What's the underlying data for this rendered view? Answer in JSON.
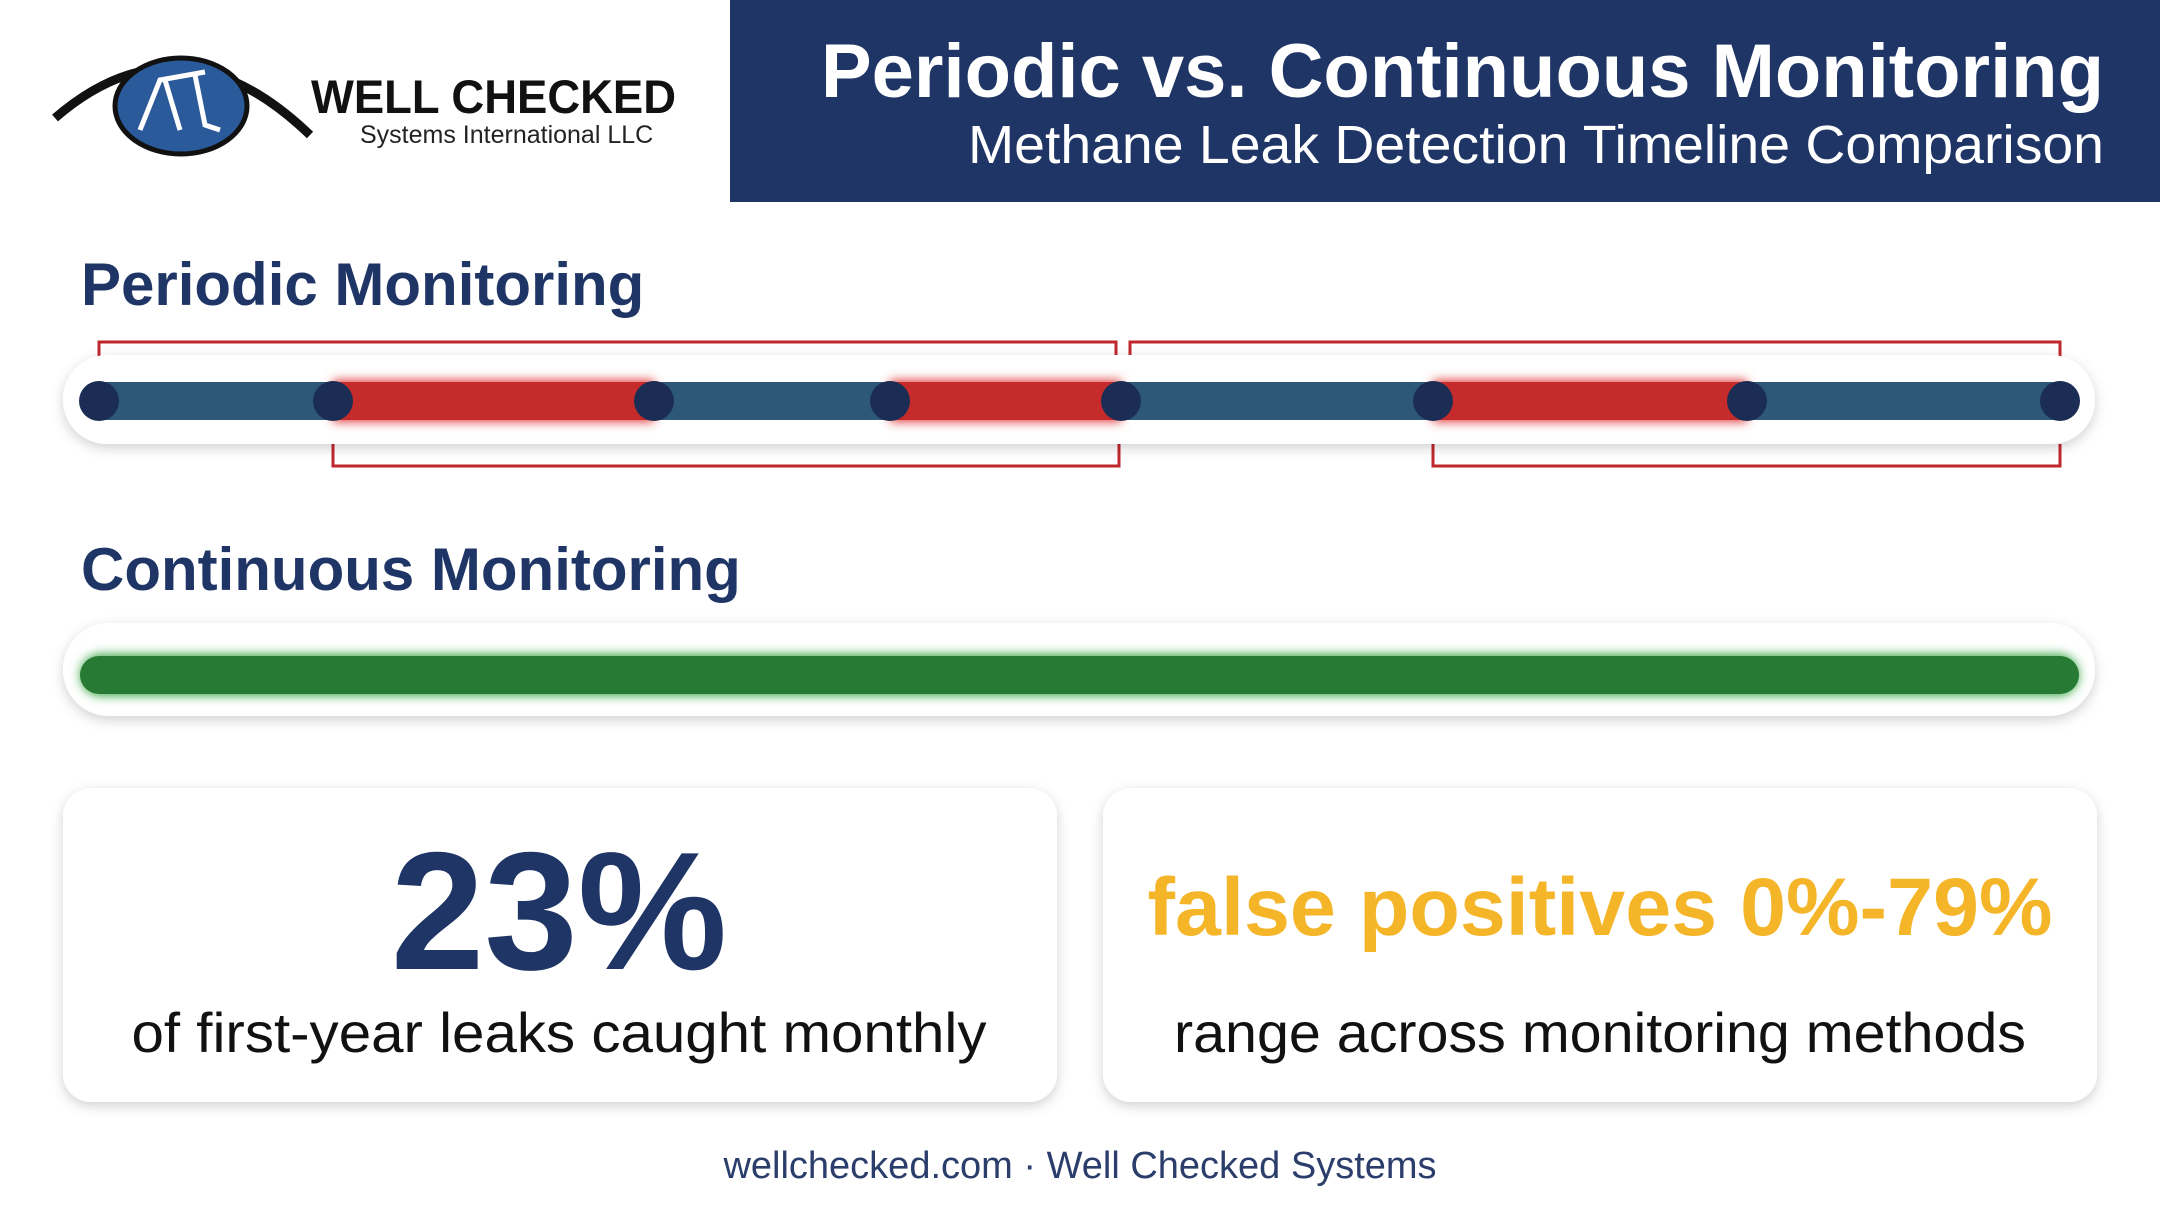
{
  "header": {
    "logo_name": "WELL CHECKED",
    "logo_subtitle": "Systems International LLC",
    "title": "Periodic vs. Continuous Monitoring",
    "subtitle": "Methane Leak Detection Timeline Comparison"
  },
  "sections": [
    {
      "title": "Periodic Monitoring"
    },
    {
      "title": "Continuous Monitoring"
    }
  ],
  "stats": [
    {
      "headline": "23%",
      "caption": "of first-year leaks caught monthly"
    },
    {
      "headline": "false positives 0%-79%",
      "caption": "range across monitoring methods"
    }
  ],
  "footer": "wellchecked.com · Well Checked Systems"
}
